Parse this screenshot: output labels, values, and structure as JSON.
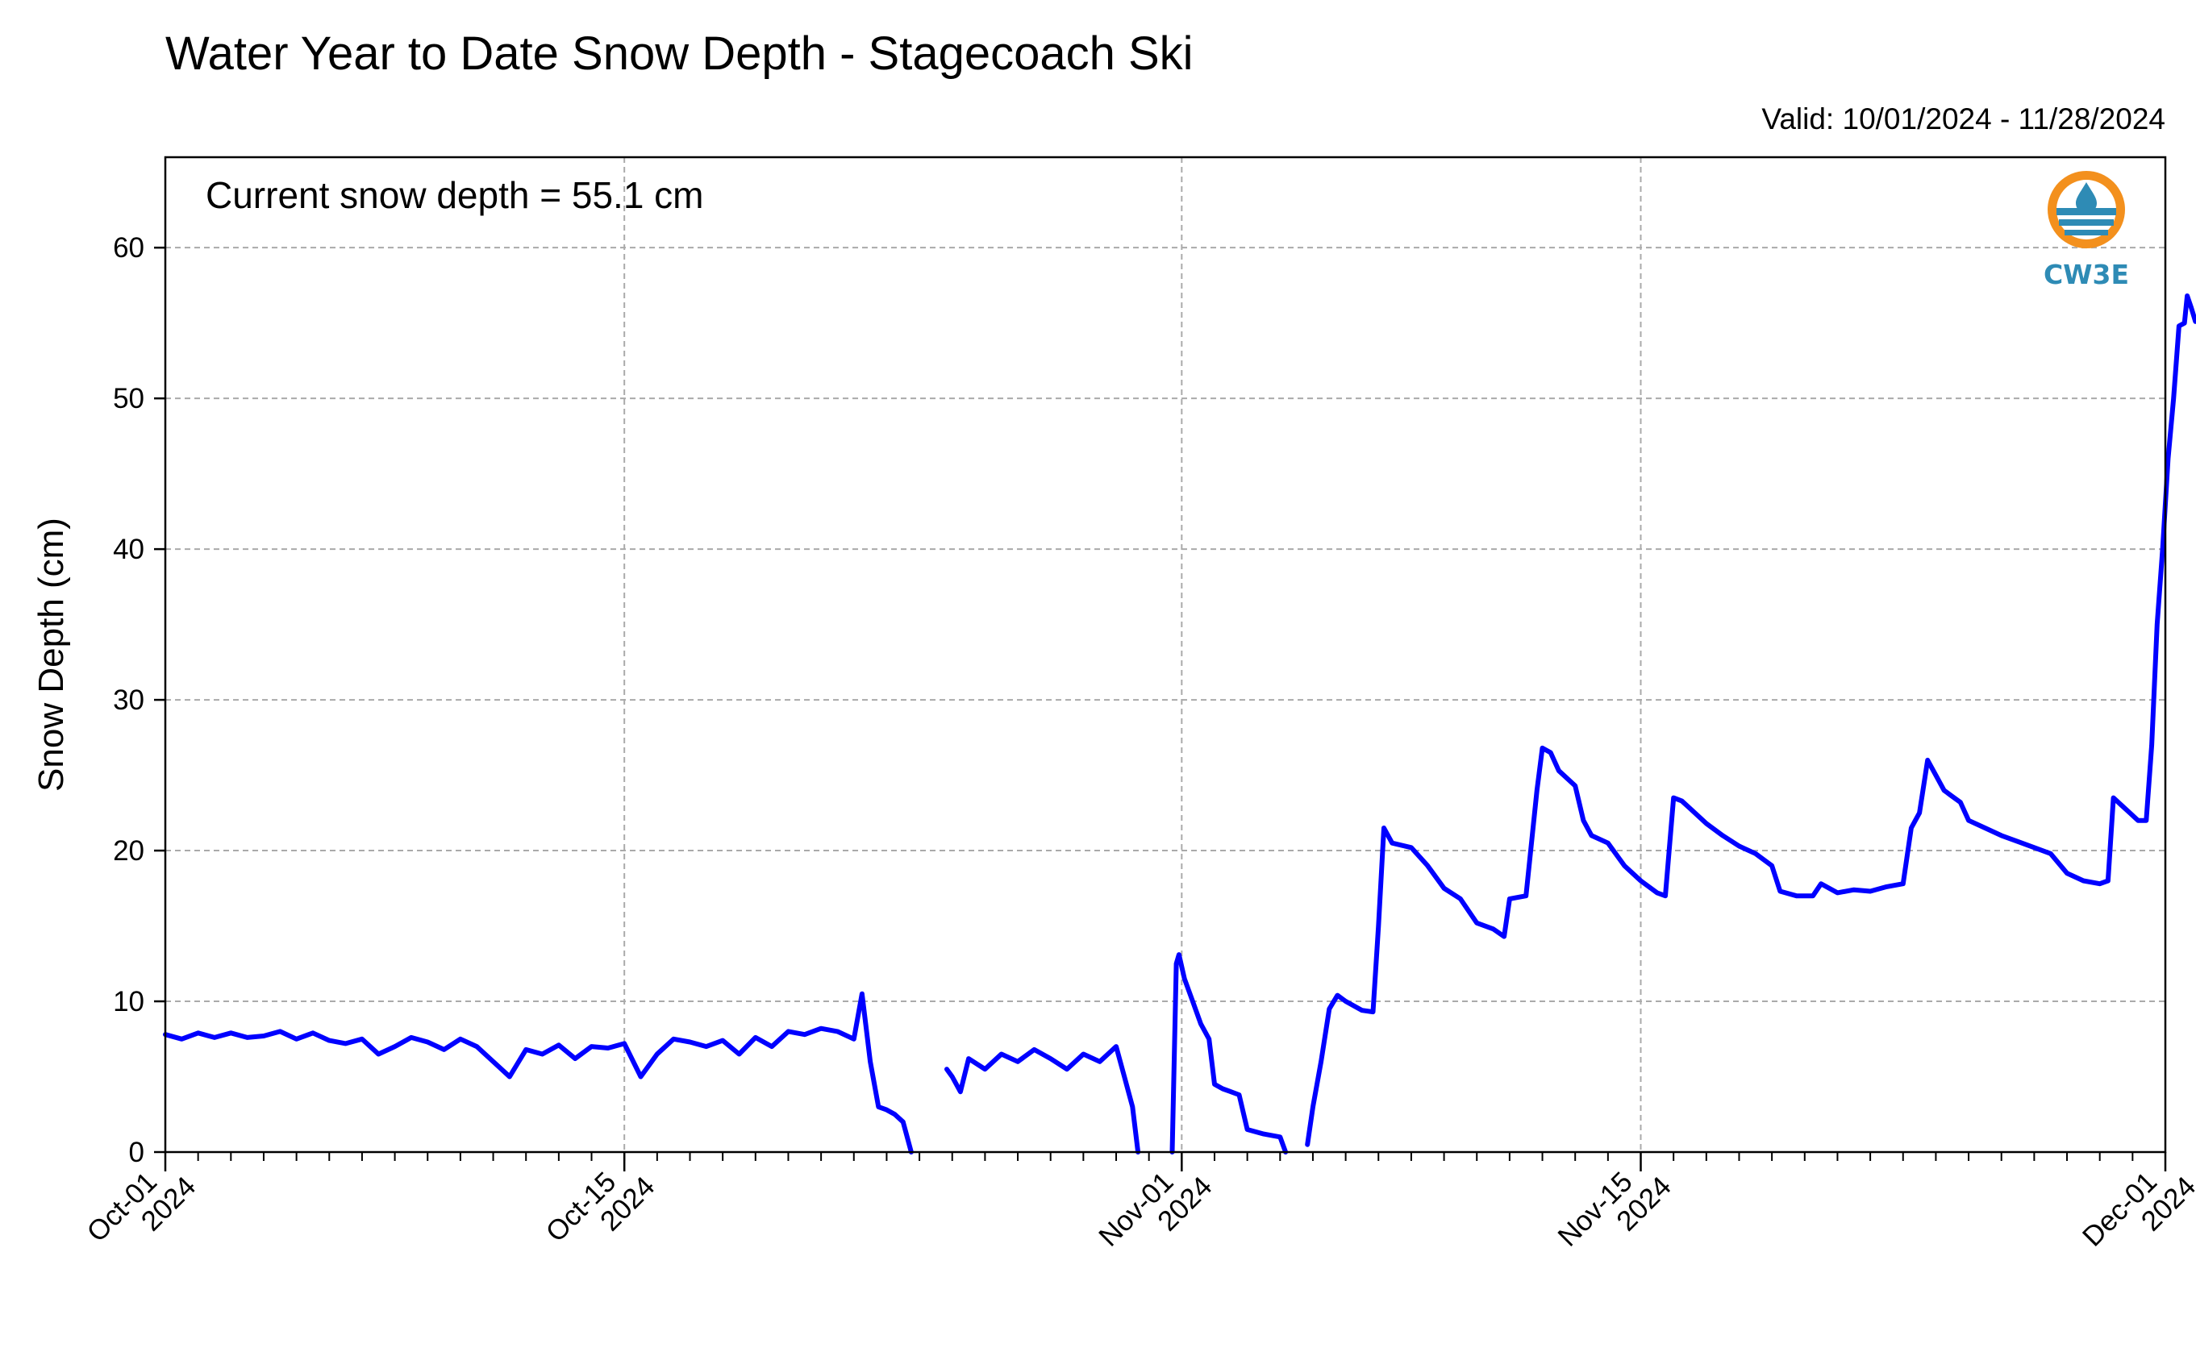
{
  "chart_data": {
    "type": "line",
    "title": "Water Year to Date Snow Depth - Stagecoach Ski",
    "subtitle": "Valid: 10/01/2024 - 11/28/2024",
    "annotation": "Current snow depth = 55.1 cm",
    "xlabel": "",
    "ylabel": "Snow Depth (cm)",
    "x_range": [
      "2024-10-01",
      "2024-12-01"
    ],
    "ylim": [
      0,
      66
    ],
    "y_ticks": [
      0,
      10,
      20,
      30,
      40,
      50,
      60
    ],
    "x_ticks": [
      {
        "date": "2024-10-01",
        "label": [
          "Oct-01",
          "2024"
        ]
      },
      {
        "date": "2024-10-15",
        "label": [
          "Oct-15",
          "2024"
        ]
      },
      {
        "date": "2024-11-01",
        "label": [
          "Nov-01",
          "2024"
        ]
      },
      {
        "date": "2024-11-15",
        "label": [
          "Nov-15",
          "2024"
        ]
      },
      {
        "date": "2024-12-01",
        "label": [
          "Dec-01",
          "2024"
        ]
      }
    ],
    "grid": true,
    "line_color": "#0000ff",
    "logo": "CW3E",
    "logo_colors": {
      "ring": "#f3901d",
      "blue": "#2e8bb5"
    },
    "series": [
      {
        "segments": [
          [
            [
              "2024-10-01T00",
              7.8
            ],
            [
              "2024-10-01T12",
              7.5
            ],
            [
              "2024-10-02T00",
              7.9
            ],
            [
              "2024-10-02T12",
              7.6
            ],
            [
              "2024-10-03T00",
              7.9
            ],
            [
              "2024-10-03T12",
              7.6
            ],
            [
              "2024-10-04T00",
              7.7
            ],
            [
              "2024-10-04T12",
              8.0
            ],
            [
              "2024-10-05T00",
              7.5
            ],
            [
              "2024-10-05T12",
              7.9
            ],
            [
              "2024-10-06T00",
              7.4
            ],
            [
              "2024-10-06T12",
              7.2
            ],
            [
              "2024-10-07T00",
              7.5
            ],
            [
              "2024-10-07T12",
              6.5
            ],
            [
              "2024-10-08T00",
              7.0
            ],
            [
              "2024-10-08T12",
              7.6
            ],
            [
              "2024-10-09T00",
              7.3
            ],
            [
              "2024-10-09T12",
              6.8
            ],
            [
              "2024-10-10T00",
              7.5
            ],
            [
              "2024-10-10T12",
              7.0
            ],
            [
              "2024-10-11T00",
              6.0
            ],
            [
              "2024-10-11T12",
              5.0
            ],
            [
              "2024-10-12T00",
              6.8
            ],
            [
              "2024-10-12T12",
              6.5
            ],
            [
              "2024-10-13T00",
              7.1
            ],
            [
              "2024-10-13T12",
              6.2
            ],
            [
              "2024-10-14T00",
              7.0
            ],
            [
              "2024-10-14T12",
              6.9
            ],
            [
              "2024-10-15T00",
              7.2
            ],
            [
              "2024-10-15T12",
              5.0
            ],
            [
              "2024-10-16T00",
              6.5
            ],
            [
              "2024-10-16T12",
              7.5
            ],
            [
              "2024-10-17T00",
              7.3
            ],
            [
              "2024-10-17T12",
              7.0
            ],
            [
              "2024-10-18T00",
              7.4
            ],
            [
              "2024-10-18T12",
              6.5
            ],
            [
              "2024-10-19T00",
              7.6
            ],
            [
              "2024-10-19T12",
              7.0
            ],
            [
              "2024-10-20T00",
              8.0
            ],
            [
              "2024-10-20T12",
              7.8
            ],
            [
              "2024-10-21T00",
              8.2
            ],
            [
              "2024-10-21T12",
              8.0
            ],
            [
              "2024-10-22T00",
              7.5
            ],
            [
              "2024-10-22T06",
              10.5
            ],
            [
              "2024-10-22T12",
              6.0
            ],
            [
              "2024-10-22T18",
              3.0
            ],
            [
              "2024-10-23T00",
              2.8
            ],
            [
              "2024-10-23T06",
              2.5
            ],
            [
              "2024-10-23T12",
              2.0
            ],
            [
              "2024-10-23T18",
              0.0
            ]
          ],
          [
            [
              "2024-10-24T20",
              5.5
            ],
            [
              "2024-10-25T00",
              5.0
            ],
            [
              "2024-10-25T06",
              4.0
            ],
            [
              "2024-10-25T12",
              6.2
            ],
            [
              "2024-10-26T00",
              5.5
            ],
            [
              "2024-10-26T12",
              6.5
            ],
            [
              "2024-10-27T00",
              6.0
            ],
            [
              "2024-10-27T12",
              6.8
            ],
            [
              "2024-10-28T00",
              6.2
            ],
            [
              "2024-10-28T12",
              5.5
            ],
            [
              "2024-10-29T00",
              6.5
            ],
            [
              "2024-10-29T12",
              6.0
            ],
            [
              "2024-10-30T00",
              7.0
            ],
            [
              "2024-10-30T06",
              5.0
            ],
            [
              "2024-10-30T12",
              3.0
            ],
            [
              "2024-10-30T16",
              0.0
            ]
          ],
          [
            [
              "2024-10-31T17",
              0.0
            ],
            [
              "2024-10-31T20",
              12.5
            ],
            [
              "2024-10-31T22",
              13.1
            ],
            [
              "2024-11-01T02",
              11.5
            ],
            [
              "2024-11-01T08",
              10.0
            ],
            [
              "2024-11-01T14",
              8.5
            ],
            [
              "2024-11-01T20",
              7.5
            ],
            [
              "2024-11-02T00",
              4.5
            ],
            [
              "2024-11-02T06",
              4.2
            ],
            [
              "2024-11-02T12",
              4.0
            ],
            [
              "2024-11-02T18",
              3.8
            ],
            [
              "2024-11-03T00",
              1.5
            ],
            [
              "2024-11-03T12",
              1.2
            ],
            [
              "2024-11-04T00",
              1.0
            ],
            [
              "2024-11-04T04",
              0.0
            ]
          ],
          [
            [
              "2024-11-04T20",
              0.5
            ],
            [
              "2024-11-05T00",
              3.0
            ],
            [
              "2024-11-05T06",
              6.0
            ],
            [
              "2024-11-05T12",
              9.5
            ],
            [
              "2024-11-05T18",
              10.4
            ],
            [
              "2024-11-06T00",
              10.0
            ],
            [
              "2024-11-06T12",
              9.4
            ],
            [
              "2024-11-06T20",
              9.3
            ],
            [
              "2024-11-07T00",
              15.0
            ],
            [
              "2024-11-07T04",
              21.5
            ],
            [
              "2024-11-07T10",
              20.5
            ],
            [
              "2024-11-08T00",
              20.2
            ],
            [
              "2024-11-08T12",
              19.0
            ],
            [
              "2024-11-09T00",
              17.5
            ],
            [
              "2024-11-09T12",
              16.8
            ],
            [
              "2024-11-10T00",
              15.2
            ],
            [
              "2024-11-10T12",
              14.8
            ],
            [
              "2024-11-10T20",
              14.3
            ],
            [
              "2024-11-11T00",
              16.8
            ],
            [
              "2024-11-11T12",
              17.0
            ],
            [
              "2024-11-11T20",
              24.0
            ],
            [
              "2024-11-12T00",
              26.8
            ],
            [
              "2024-11-12T06",
              26.5
            ],
            [
              "2024-11-12T12",
              25.3
            ],
            [
              "2024-11-13T00",
              24.3
            ],
            [
              "2024-11-13T06",
              22.0
            ],
            [
              "2024-11-13T12",
              21.0
            ],
            [
              "2024-11-14T00",
              20.5
            ],
            [
              "2024-11-14T12",
              19.0
            ],
            [
              "2024-11-15T00",
              18.0
            ],
            [
              "2024-11-15T12",
              17.2
            ],
            [
              "2024-11-15T18",
              17.0
            ],
            [
              "2024-11-16T00",
              23.5
            ],
            [
              "2024-11-16T06",
              23.3
            ],
            [
              "2024-11-16T12",
              22.8
            ],
            [
              "2024-11-17T00",
              21.8
            ],
            [
              "2024-11-17T12",
              21.0
            ],
            [
              "2024-11-18T00",
              20.3
            ],
            [
              "2024-11-18T12",
              19.8
            ],
            [
              "2024-11-19T00",
              19.0
            ],
            [
              "2024-11-19T06",
              17.3
            ],
            [
              "2024-11-19T18",
              17.0
            ],
            [
              "2024-11-20T06",
              17.0
            ],
            [
              "2024-11-20T12",
              17.8
            ],
            [
              "2024-11-21T00",
              17.2
            ],
            [
              "2024-11-21T12",
              17.4
            ],
            [
              "2024-11-22T00",
              17.3
            ],
            [
              "2024-11-22T12",
              17.6
            ],
            [
              "2024-11-23T00",
              17.8
            ],
            [
              "2024-11-23T06",
              21.5
            ],
            [
              "2024-11-23T12",
              22.5
            ],
            [
              "2024-11-23T18",
              26.0
            ],
            [
              "2024-11-24T00",
              25.0
            ],
            [
              "2024-11-24T06",
              24.0
            ],
            [
              "2024-11-24T12",
              23.6
            ],
            [
              "2024-11-24T18",
              23.2
            ],
            [
              "2024-11-25T00",
              22.0
            ],
            [
              "2024-11-25T12",
              21.5
            ],
            [
              "2024-11-26T00",
              21.0
            ],
            [
              "2024-11-26T12",
              20.6
            ],
            [
              "2024-11-27T00",
              20.2
            ],
            [
              "2024-11-27T12",
              19.8
            ],
            [
              "2024-11-28T00",
              18.5
            ],
            [
              "2024-11-28T12",
              18.0
            ],
            [
              "2024-11-29T00",
              17.8
            ],
            [
              "2024-11-29T06",
              18.0
            ],
            [
              "2024-11-29T10",
              23.5
            ],
            [
              "2024-11-29T16",
              23.0
            ],
            [
              "2024-11-29T22",
              22.5
            ],
            [
              "2024-11-30T04",
              22.0
            ],
            [
              "2024-11-30T10",
              22.0
            ],
            [
              "2024-11-30T14",
              27.0
            ],
            [
              "2024-11-30T18",
              35.0
            ],
            [
              "2024-11-30T22",
              40.0
            ],
            [
              "2024-12-01T02",
              46.0
            ],
            [
              "2024-12-01T06",
              50.0
            ],
            [
              "2024-12-01T10",
              54.8
            ],
            [
              "2024-12-01T14",
              55.0
            ],
            [
              "2024-12-01T16",
              56.8
            ],
            [
              "2024-12-01T19",
              56.0
            ],
            [
              "2024-12-01T22",
              55.1
            ]
          ]
        ]
      }
    ]
  }
}
